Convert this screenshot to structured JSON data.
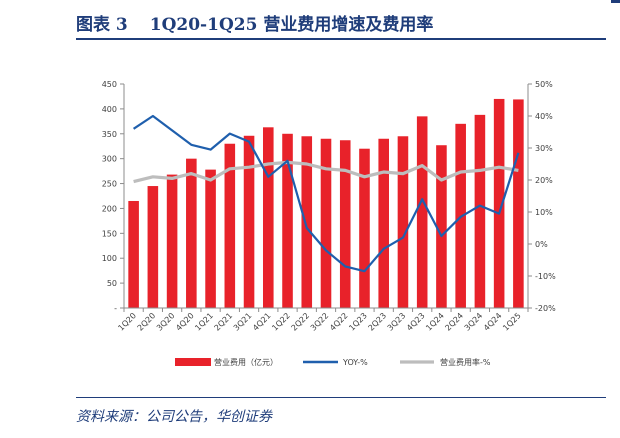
{
  "figure": {
    "title_prefix": "图表",
    "title_number": "3",
    "title_text": "1Q20-1Q25 营业费用增速及费用率",
    "source": "资料来源：公司公告，华创证券"
  },
  "colors": {
    "bar": "#e8222a",
    "yoy_line": "#1f5fad",
    "rate_line": "#bdbdbd",
    "title": "#1f3d7a",
    "axis": "#8c8c8c"
  },
  "chart_data": {
    "type": "bar",
    "categories": [
      "1Q20",
      "2Q20",
      "3Q20",
      "4Q20",
      "1Q21",
      "2Q21",
      "3Q21",
      "4Q21",
      "1Q22",
      "2Q22",
      "3Q22",
      "4Q22",
      "1Q23",
      "2Q23",
      "3Q23",
      "4Q23",
      "1Q24",
      "2Q24",
      "3Q24",
      "4Q24",
      "1Q25"
    ],
    "series": [
      {
        "name": "营业费用（亿元）",
        "type": "bar",
        "axis": "left",
        "values": [
          215,
          245,
          268,
          300,
          278,
          330,
          346,
          363,
          350,
          345,
          340,
          337,
          320,
          340,
          345,
          385,
          327,
          370,
          388,
          420,
          419
        ]
      },
      {
        "name": "YOY-%",
        "type": "line",
        "axis": "right",
        "values": [
          36,
          40,
          35.5,
          31,
          29.5,
          34.5,
          32,
          21,
          26,
          5,
          -2,
          -7,
          -8.5,
          -1.5,
          2,
          14,
          2.5,
          8.5,
          12,
          9.5,
          28.5
        ]
      },
      {
        "name": "营业费用率-%",
        "type": "line",
        "axis": "right",
        "values": [
          19.5,
          21,
          20.5,
          22,
          20,
          23.5,
          24,
          25,
          25.5,
          25,
          23.5,
          23,
          21,
          22.5,
          22,
          24.5,
          20,
          22.5,
          23,
          24,
          23
        ]
      }
    ],
    "left_axis": {
      "min": 0,
      "max": 450,
      "step": 50,
      "tick_labels": [
        "-",
        "50",
        "100",
        "150",
        "200",
        "250",
        "300",
        "350",
        "400",
        "450"
      ]
    },
    "right_axis": {
      "min": -20,
      "max": 50,
      "step": 10,
      "tick_labels": [
        "-20%",
        "-10%",
        "0%",
        "10%",
        "20%",
        "30%",
        "40%",
        "50%"
      ]
    },
    "grid": false,
    "legend_position": "bottom"
  }
}
